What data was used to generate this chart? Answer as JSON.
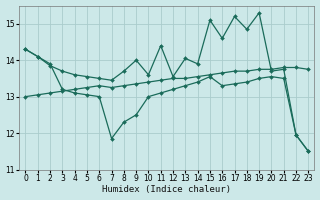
{
  "background_color": "#cce8e8",
  "grid_color": "#aacccc",
  "line_color": "#1a6b5a",
  "xlabel": "Humidex (Indice chaleur)",
  "xlim": [
    -0.5,
    23.5
  ],
  "ylim": [
    11,
    15.5
  ],
  "yticks": [
    11,
    12,
    13,
    14,
    15
  ],
  "xticks": [
    0,
    1,
    2,
    3,
    4,
    5,
    6,
    7,
    8,
    9,
    10,
    11,
    12,
    13,
    14,
    15,
    16,
    17,
    18,
    19,
    20,
    21,
    22,
    23
  ],
  "line1_x": [
    0,
    1,
    2,
    3,
    4,
    5,
    6,
    7,
    8,
    9,
    10,
    11,
    12,
    13,
    14,
    15,
    16,
    17,
    18,
    19,
    20,
    21,
    22,
    23
  ],
  "line1_y": [
    14.3,
    14.1,
    13.85,
    13.7,
    13.6,
    13.55,
    13.5,
    13.45,
    13.7,
    14.0,
    13.6,
    14.4,
    13.55,
    14.05,
    13.9,
    15.1,
    14.6,
    15.2,
    14.85,
    15.3,
    13.7,
    13.75,
    11.95,
    11.5
  ],
  "line2_x": [
    0,
    1,
    2,
    3,
    4,
    5,
    6,
    7,
    8,
    9,
    10,
    11,
    12,
    13,
    14,
    15,
    16,
    17,
    18,
    19,
    20,
    21,
    22,
    23
  ],
  "line2_y": [
    13.0,
    13.05,
    13.1,
    13.15,
    13.2,
    13.25,
    13.3,
    13.25,
    13.3,
    13.35,
    13.4,
    13.45,
    13.5,
    13.5,
    13.55,
    13.6,
    13.65,
    13.7,
    13.7,
    13.75,
    13.75,
    13.8,
    13.8,
    13.75
  ],
  "line3_x": [
    0,
    1,
    2,
    3,
    4,
    5,
    6,
    7,
    8,
    9,
    10,
    11,
    12,
    13,
    14,
    15,
    16,
    17,
    18,
    19,
    20,
    21,
    22,
    23
  ],
  "line3_y": [
    14.3,
    14.1,
    13.9,
    13.2,
    13.1,
    13.05,
    13.0,
    11.85,
    12.3,
    12.5,
    13.0,
    13.1,
    13.2,
    13.3,
    13.4,
    13.55,
    13.3,
    13.35,
    13.4,
    13.5,
    13.55,
    13.5,
    11.95,
    11.5
  ]
}
